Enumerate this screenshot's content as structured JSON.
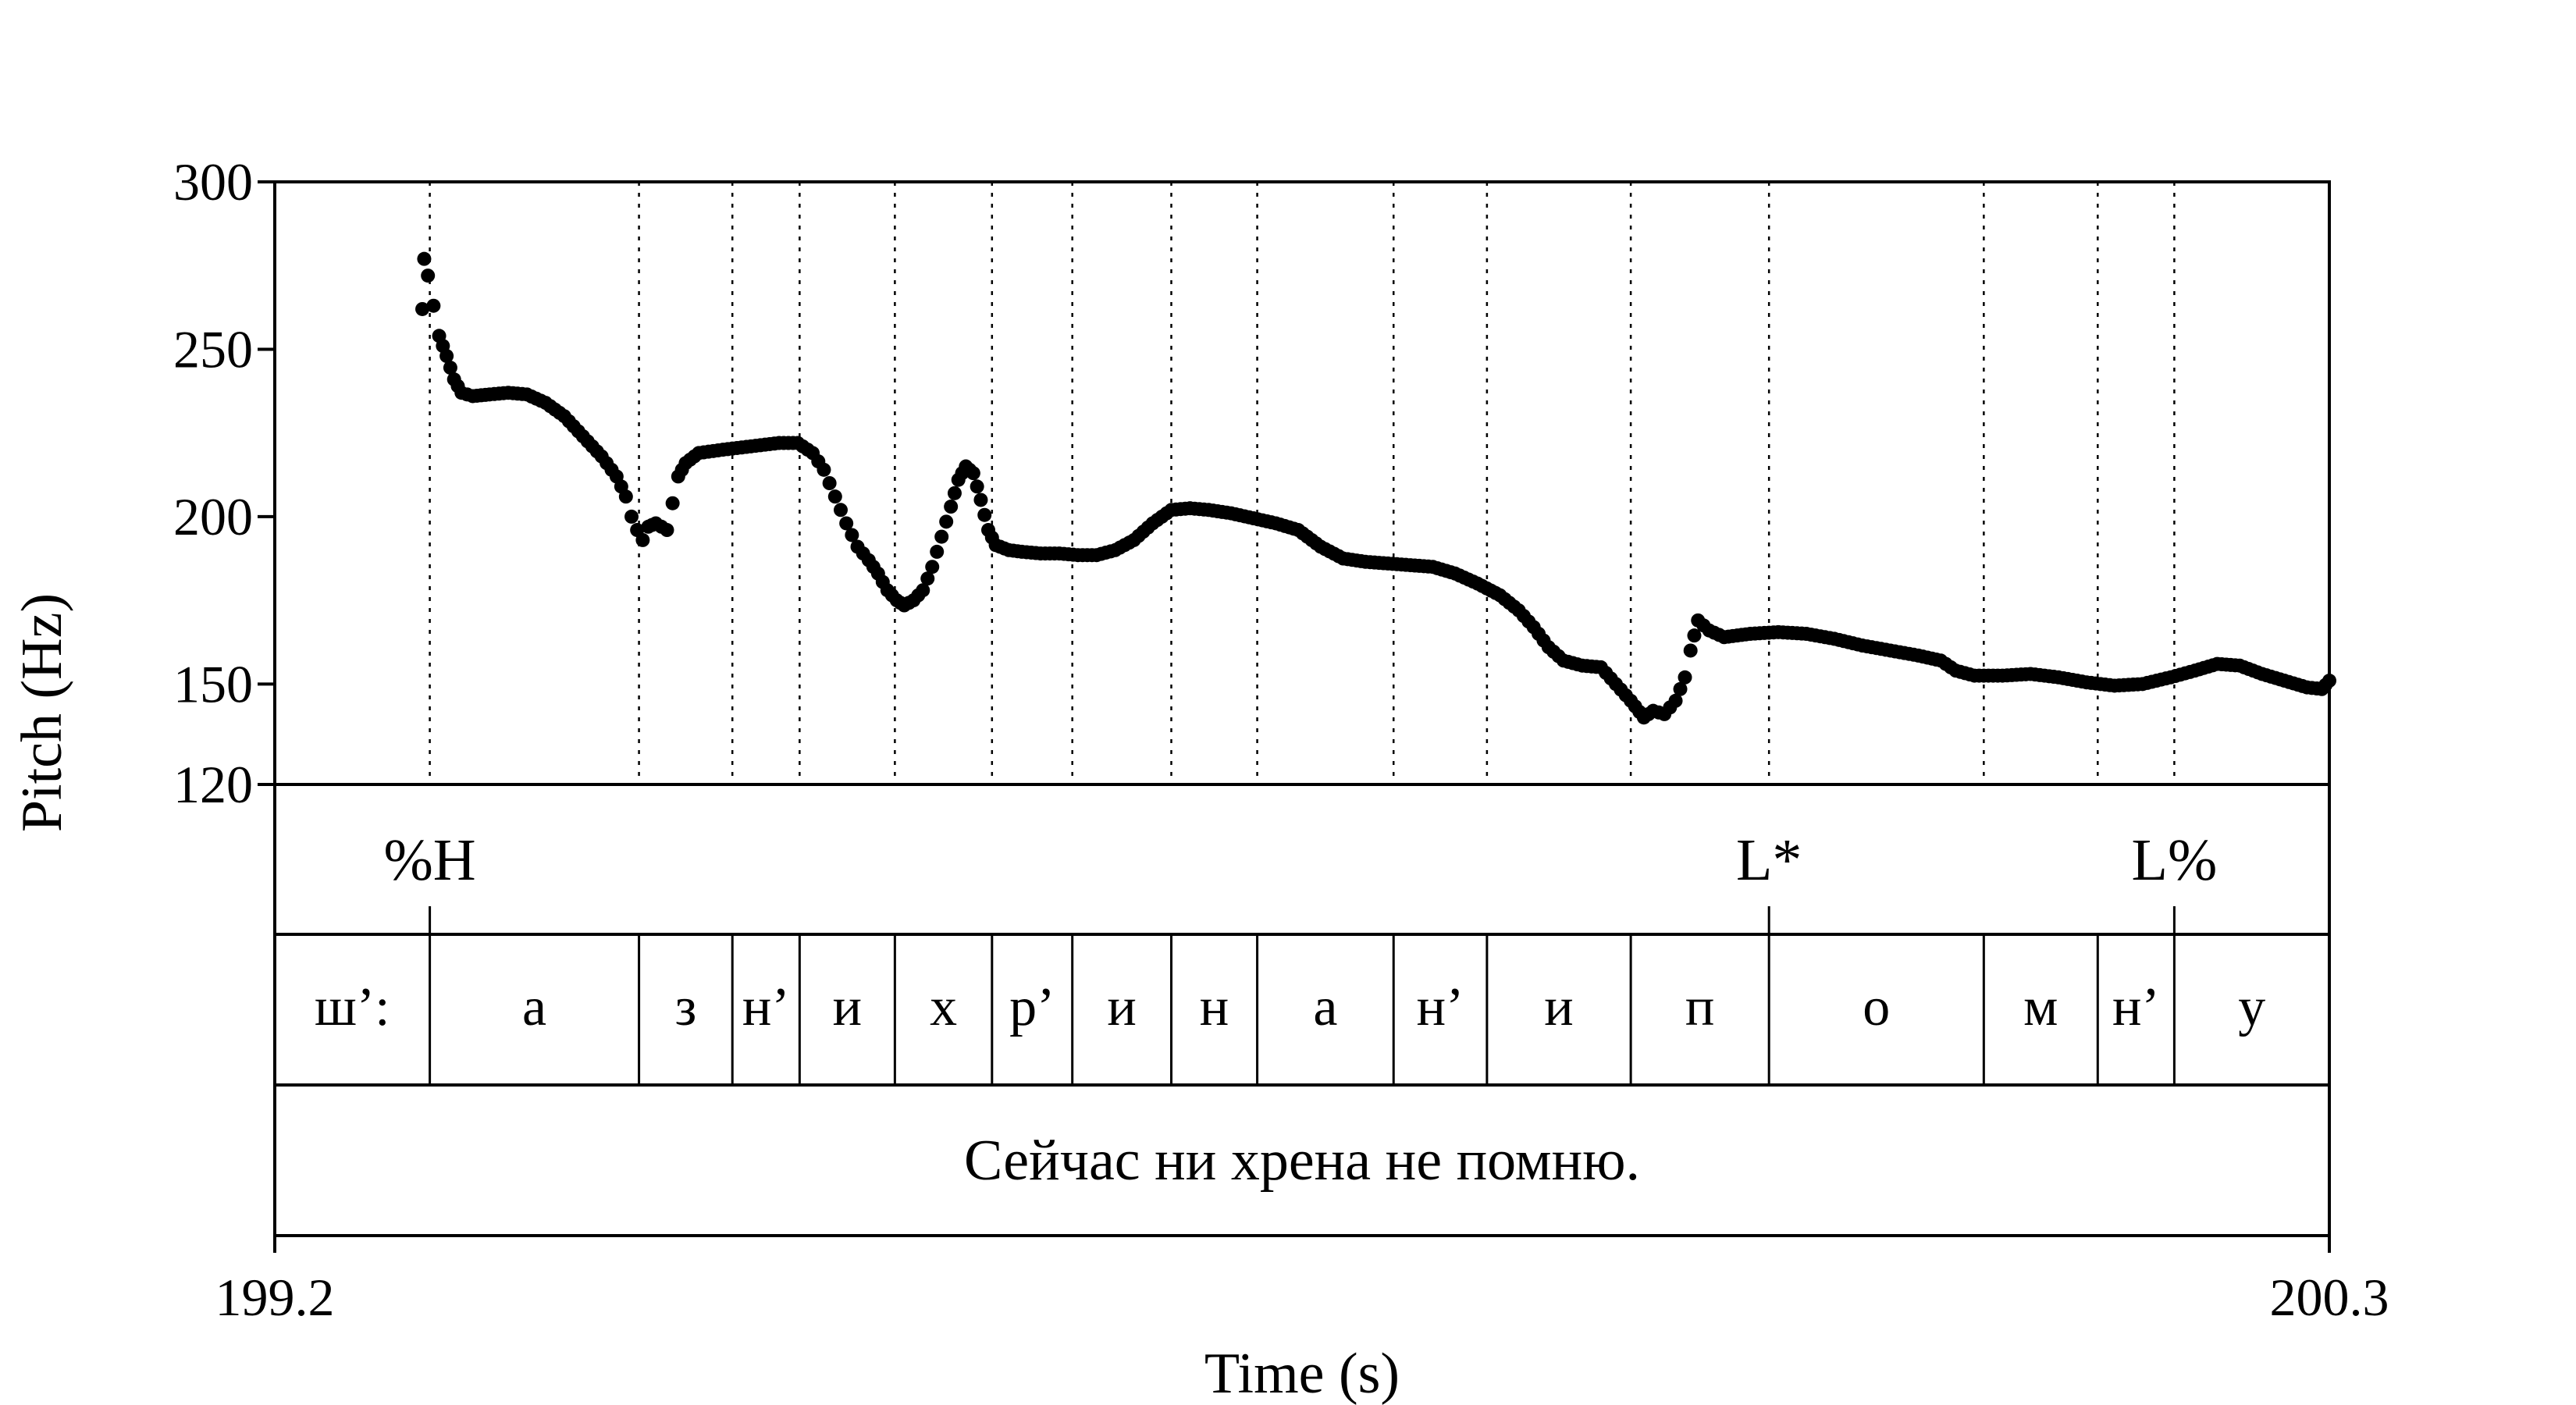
{
  "chart_data": {
    "type": "scatter",
    "title": "",
    "xlabel": "Time (s)",
    "ylabel": "Pitch (Hz)",
    "xlim": [
      199.2,
      200.3
    ],
    "ylim": [
      120,
      300
    ],
    "x_tick_labels": [
      "199.2",
      "200.3"
    ],
    "y_ticks": [
      120,
      150,
      200,
      250,
      300
    ],
    "grid": "dotted vertical lines at segment boundaries",
    "marker_color": "#000000",
    "tones": [
      {
        "label": "%H",
        "time": 199.283
      },
      {
        "label": "L*",
        "time": 200.0
      },
      {
        "label": "L%",
        "time": 200.217
      }
    ],
    "boundaries": [
      199.283,
      199.395,
      199.445,
      199.481,
      199.532,
      199.584,
      199.627,
      199.68,
      199.726,
      199.799,
      199.849,
      199.926,
      200.0,
      200.115,
      200.176,
      200.217
    ],
    "segments": [
      {
        "label": "ш’:",
        "start": 199.2,
        "end": 199.283
      },
      {
        "label": "а",
        "start": 199.283,
        "end": 199.395
      },
      {
        "label": "з",
        "start": 199.395,
        "end": 199.445
      },
      {
        "label": "н’",
        "start": 199.445,
        "end": 199.481
      },
      {
        "label": "и",
        "start": 199.481,
        "end": 199.532
      },
      {
        "label": "х",
        "start": 199.532,
        "end": 199.584
      },
      {
        "label": "р’",
        "start": 199.584,
        "end": 199.627
      },
      {
        "label": "и",
        "start": 199.627,
        "end": 199.68
      },
      {
        "label": "н",
        "start": 199.68,
        "end": 199.726
      },
      {
        "label": "а",
        "start": 199.726,
        "end": 199.799
      },
      {
        "label": "н’",
        "start": 199.799,
        "end": 199.849
      },
      {
        "label": "и",
        "start": 199.849,
        "end": 199.926
      },
      {
        "label": "п",
        "start": 199.926,
        "end": 200.0
      },
      {
        "label": "о",
        "start": 200.0,
        "end": 200.115
      },
      {
        "label": "м",
        "start": 200.115,
        "end": 200.176
      },
      {
        "label": "н’",
        "start": 200.176,
        "end": 200.217
      },
      {
        "label": "у",
        "start": 200.217,
        "end": 200.3
      }
    ],
    "sentence": "Сейчас ни хрена не помню.",
    "pitch_points": [
      [
        199.279,
        262
      ],
      [
        199.28,
        277
      ],
      [
        199.282,
        272
      ],
      [
        199.285,
        263
      ],
      [
        199.288,
        254
      ],
      [
        199.292,
        248
      ],
      [
        199.296,
        241
      ],
      [
        199.3,
        237
      ],
      [
        199.306,
        236
      ],
      [
        199.315,
        236.5
      ],
      [
        199.325,
        237
      ],
      [
        199.335,
        236.5
      ],
      [
        199.345,
        234
      ],
      [
        199.355,
        230
      ],
      [
        199.365,
        224
      ],
      [
        199.375,
        218
      ],
      [
        199.383,
        212
      ],
      [
        199.388,
        206
      ],
      [
        199.391,
        200
      ],
      [
        199.394,
        196
      ],
      [
        199.397,
        193
      ],
      [
        199.4,
        197
      ],
      [
        199.404,
        198
      ],
      [
        199.41,
        196
      ],
      [
        199.413,
        204
      ],
      [
        199.416,
        212
      ],
      [
        199.42,
        216
      ],
      [
        199.427,
        219
      ],
      [
        199.44,
        220
      ],
      [
        199.455,
        221
      ],
      [
        199.47,
        222
      ],
      [
        199.48,
        222
      ],
      [
        199.488,
        219
      ],
      [
        199.494,
        214
      ],
      [
        199.5,
        206
      ],
      [
        199.506,
        198
      ],
      [
        199.512,
        191
      ],
      [
        199.518,
        187
      ],
      [
        199.523,
        183
      ],
      [
        199.528,
        178
      ],
      [
        199.533,
        175
      ],
      [
        199.537,
        173.5
      ],
      [
        199.542,
        175
      ],
      [
        199.547,
        178
      ],
      [
        199.552,
        185
      ],
      [
        199.557,
        194
      ],
      [
        199.562,
        203
      ],
      [
        199.566,
        211
      ],
      [
        199.57,
        215
      ],
      [
        199.574,
        213
      ],
      [
        199.578,
        205
      ],
      [
        199.582,
        196
      ],
      [
        199.586,
        191.5
      ],
      [
        199.593,
        190
      ],
      [
        199.6,
        189.5
      ],
      [
        199.61,
        189
      ],
      [
        199.62,
        189
      ],
      [
        199.63,
        188.5
      ],
      [
        199.64,
        188.5
      ],
      [
        199.65,
        190
      ],
      [
        199.66,
        193
      ],
      [
        199.67,
        198
      ],
      [
        199.68,
        202
      ],
      [
        199.69,
        202.5
      ],
      [
        199.7,
        202
      ],
      [
        199.712,
        201
      ],
      [
        199.724,
        199.5
      ],
      [
        199.736,
        198
      ],
      [
        199.748,
        196
      ],
      [
        199.76,
        191
      ],
      [
        199.772,
        187.5
      ],
      [
        199.784,
        186.5
      ],
      [
        199.796,
        186
      ],
      [
        199.808,
        185.5
      ],
      [
        199.82,
        185
      ],
      [
        199.832,
        183
      ],
      [
        199.844,
        180
      ],
      [
        199.856,
        176.5
      ],
      [
        199.866,
        172
      ],
      [
        199.874,
        167
      ],
      [
        199.882,
        161
      ],
      [
        199.89,
        157
      ],
      [
        199.9,
        155.5
      ],
      [
        199.91,
        155
      ],
      [
        199.918,
        150
      ],
      [
        199.926,
        145
      ],
      [
        199.933,
        140
      ],
      [
        199.938,
        142
      ],
      [
        199.944,
        141
      ],
      [
        199.95,
        145
      ],
      [
        199.955,
        152
      ],
      [
        199.958,
        160
      ],
      [
        199.962,
        169
      ],
      [
        199.968,
        166
      ],
      [
        199.976,
        164
      ],
      [
        199.99,
        165
      ],
      [
        200.005,
        165.5
      ],
      [
        200.02,
        165
      ],
      [
        200.035,
        163.5
      ],
      [
        200.05,
        161.5
      ],
      [
        200.065,
        160
      ],
      [
        200.08,
        158.5
      ],
      [
        200.092,
        157
      ],
      [
        200.1,
        154
      ],
      [
        200.11,
        152.5
      ],
      [
        200.125,
        152.5
      ],
      [
        200.14,
        153
      ],
      [
        200.155,
        152
      ],
      [
        200.17,
        150.5
      ],
      [
        200.185,
        149.5
      ],
      [
        200.2,
        150
      ],
      [
        200.215,
        152
      ],
      [
        200.228,
        154
      ],
      [
        200.24,
        156
      ],
      [
        200.252,
        155.5
      ],
      [
        200.264,
        153
      ],
      [
        200.276,
        151
      ],
      [
        200.288,
        149
      ],
      [
        200.296,
        148.5
      ],
      [
        200.3,
        151
      ]
    ]
  }
}
